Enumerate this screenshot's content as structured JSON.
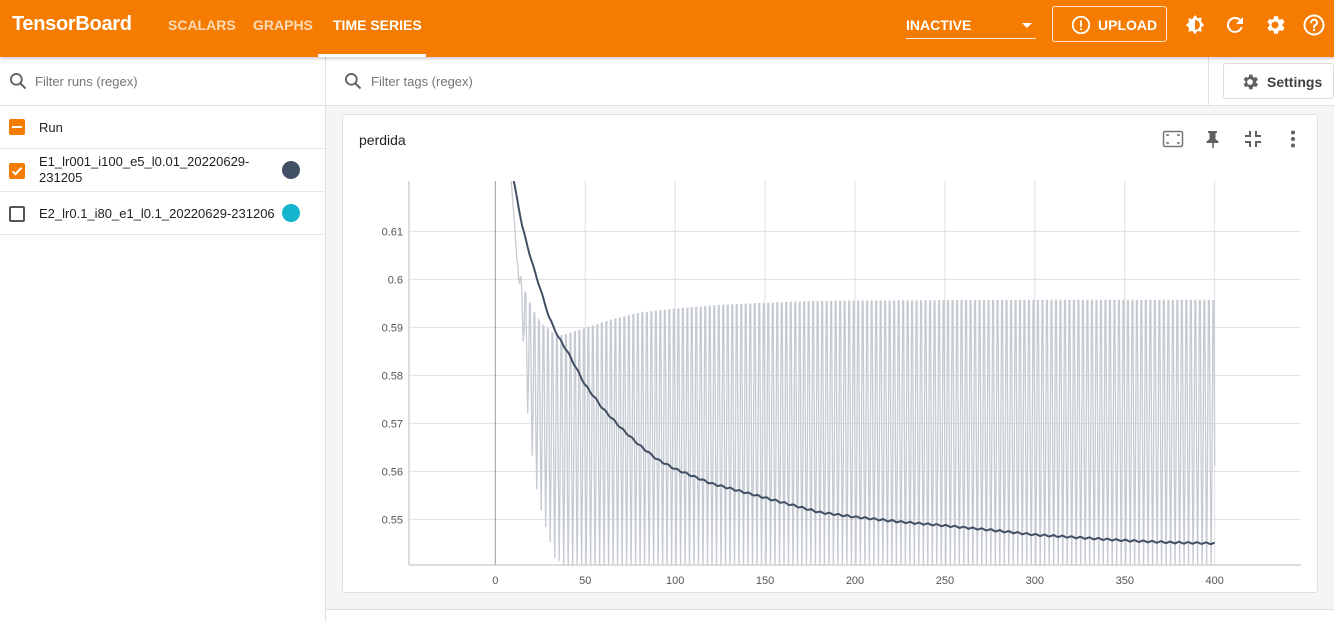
{
  "app": {
    "title": "TensorBoard",
    "accent_color": "#f57c00"
  },
  "nav": {
    "tabs": [
      {
        "label": "SCALARS",
        "active": false
      },
      {
        "label": "GRAPHS",
        "active": false
      },
      {
        "label": "TIME SERIES",
        "active": true
      }
    ]
  },
  "toolbar": {
    "plugin_select": "INACTIVE",
    "upload_label": "UPLOAD",
    "icons": [
      "theme-toggle-icon",
      "refresh-icon",
      "settings-gear-icon",
      "help-icon"
    ]
  },
  "runs": {
    "filter_placeholder": "Filter runs (regex)",
    "header_label": "Run",
    "items": [
      {
        "label": "E1_lr001_i100_e5_l0.01_20220629-231205",
        "label_line1": "E1_lr001_i100_e5_l0.01_20220629-",
        "label_line2": "231205",
        "checked": true,
        "color": "#425066"
      },
      {
        "label": "E2_lr0.1_i80_e1_l0.1_20220629-231206",
        "checked": false,
        "color": "#12b5cb"
      }
    ]
  },
  "main": {
    "filter_tags_placeholder": "Filter tags (regex)",
    "settings_label": "Settings"
  },
  "card": {
    "title": "perdida",
    "icons": [
      "fit-domain-icon",
      "pin-icon",
      "collapse-icon",
      "more-vert-icon"
    ]
  },
  "chart_data": {
    "type": "line",
    "title": "perdida",
    "xlabel": "",
    "ylabel": "",
    "xlim": [
      -48,
      448
    ],
    "ylim": [
      0.5405,
      0.6205
    ],
    "x_ticks": [
      0,
      50,
      100,
      150,
      200,
      250,
      300,
      350,
      400
    ],
    "y_ticks": [
      0.55,
      0.56,
      0.57,
      0.58,
      0.59,
      0.6,
      0.61
    ],
    "grid": true,
    "series": [
      {
        "smoothed_points": [
          [
            8,
            0.625
          ],
          [
            15,
            0.611
          ],
          [
            20,
            0.604
          ],
          [
            25,
            0.598
          ],
          [
            30,
            0.592
          ],
          [
            35,
            0.588
          ],
          [
            40,
            0.585
          ],
          [
            50,
            0.578
          ],
          [
            60,
            0.573
          ],
          [
            70,
            0.569
          ],
          [
            80,
            0.5655
          ],
          [
            90,
            0.5625
          ],
          [
            100,
            0.5605
          ],
          [
            120,
            0.5575
          ],
          [
            140,
            0.5555
          ],
          [
            160,
            0.5535
          ],
          [
            180,
            0.5515
          ],
          [
            200,
            0.5505
          ],
          [
            225,
            0.5495
          ],
          [
            250,
            0.5487
          ],
          [
            275,
            0.5478
          ],
          [
            300,
            0.5468
          ],
          [
            325,
            0.5462
          ],
          [
            350,
            0.5456
          ],
          [
            375,
            0.5452
          ],
          [
            400,
            0.545
          ]
        ],
        "color": "#425066"
      },
      {
        "raw_envelope_upper": [
          [
            8,
            0.625
          ],
          [
            12,
            0.604
          ],
          [
            15,
            0.6
          ],
          [
            25,
            0.595
          ],
          [
            35,
            0.593
          ],
          [
            50,
            0.595
          ],
          [
            65,
            0.597
          ],
          [
            80,
            0.5985
          ],
          [
            100,
            0.5995
          ],
          [
            125,
            0.6003
          ],
          [
            150,
            0.6008
          ],
          [
            175,
            0.6012
          ],
          [
            200,
            0.6013
          ],
          [
            250,
            0.6014
          ],
          [
            300,
            0.6015
          ],
          [
            350,
            0.6015
          ],
          [
            400,
            0.6015
          ]
        ],
        "raw_envelope_lower": [
          [
            8,
            0.625
          ],
          [
            15,
            0.59
          ],
          [
            18,
            0.572
          ],
          [
            22,
            0.558
          ],
          [
            26,
            0.551
          ],
          [
            33,
            0.542
          ],
          [
            40,
            0.54
          ]
        ],
        "raw_period": 5,
        "color": "#c5cad3"
      }
    ]
  }
}
